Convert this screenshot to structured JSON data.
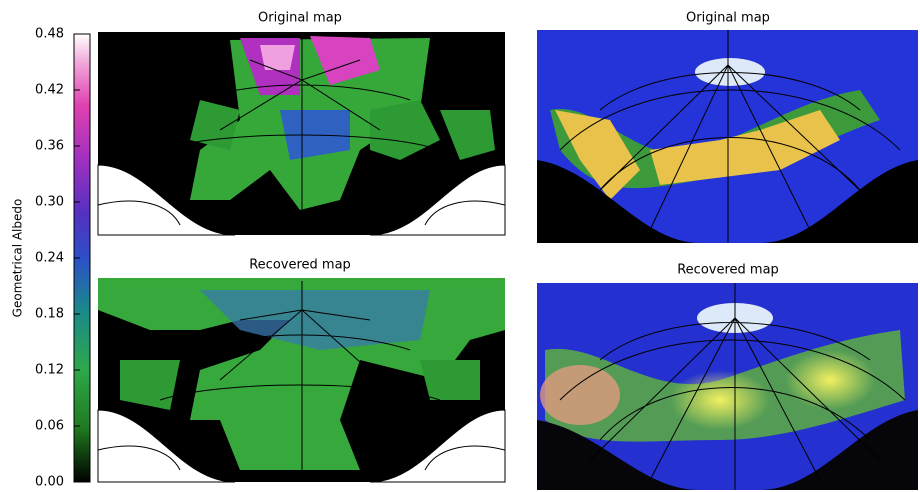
{
  "colorbar": {
    "label": "Geometrical Albedo",
    "lim": [
      0,
      0.48
    ],
    "ticks": [
      {
        "value": 0,
        "label": "0.00"
      },
      0.06,
      0.12,
      0.18,
      0.24,
      {
        "value": 0.3,
        "label": "0.30"
      },
      0.36,
      0.42,
      0.48
    ]
  },
  "panels": [
    {
      "title": "Original map"
    },
    {
      "title": "Original map"
    },
    {
      "title": "Recovered map"
    },
    {
      "title": "Recovered map"
    }
  ]
}
